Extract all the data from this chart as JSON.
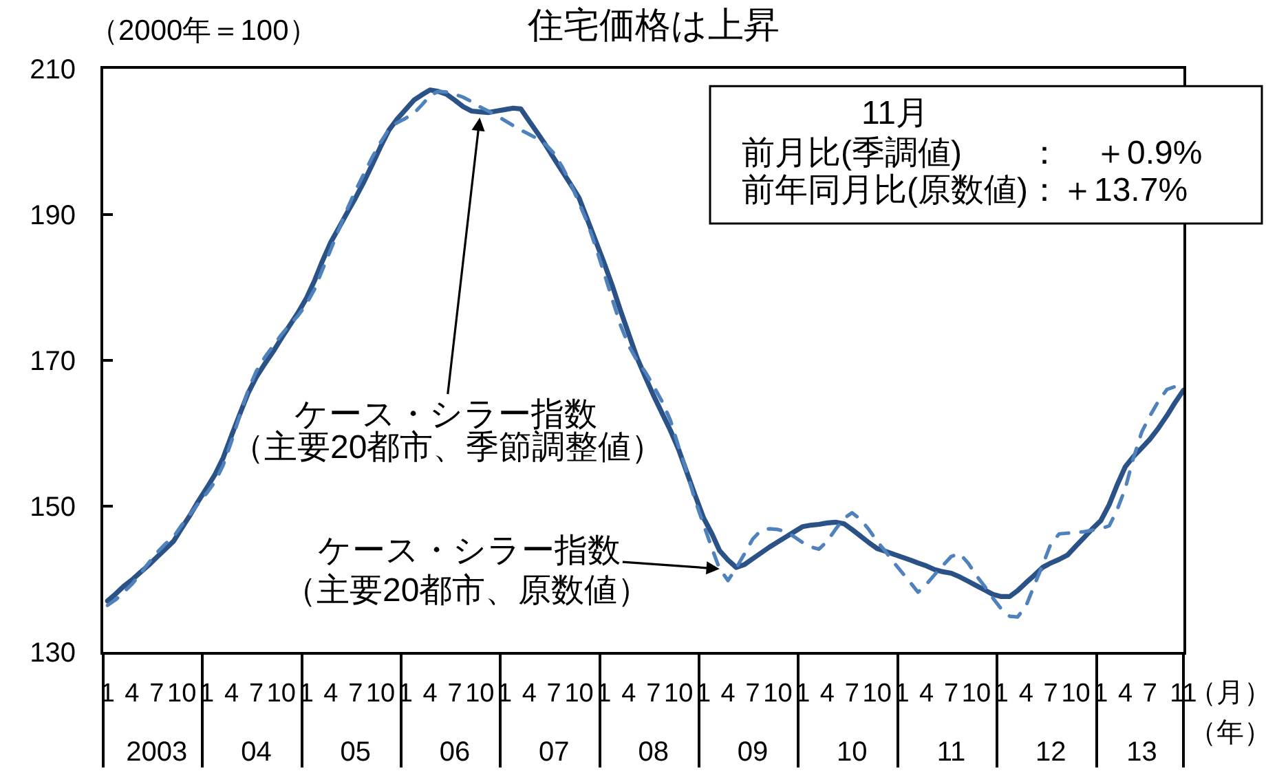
{
  "chart_data": {
    "type": "line",
    "title": "住宅価格は上昇",
    "ylabel": "（2000年＝100）",
    "xlabel": "（月）",
    "x2label": "（年）",
    "x": [
      "2003-01",
      "2003-02",
      "2003-03",
      "2003-04",
      "2003-05",
      "2003-06",
      "2003-07",
      "2003-08",
      "2003-09",
      "2003-10",
      "2003-11",
      "2003-12",
      "2004-01",
      "2004-02",
      "2004-03",
      "2004-04",
      "2004-05",
      "2004-06",
      "2004-07",
      "2004-08",
      "2004-09",
      "2004-10",
      "2004-11",
      "2004-12",
      "2005-01",
      "2005-02",
      "2005-03",
      "2005-04",
      "2005-05",
      "2005-06",
      "2005-07",
      "2005-08",
      "2005-09",
      "2005-10",
      "2005-11",
      "2005-12",
      "2006-01",
      "2006-02",
      "2006-03",
      "2006-04",
      "2006-05",
      "2006-06",
      "2006-07",
      "2006-08",
      "2006-09",
      "2006-10",
      "2006-11",
      "2006-12",
      "2007-01",
      "2007-02",
      "2007-03",
      "2007-04",
      "2007-05",
      "2007-06",
      "2007-07",
      "2007-08",
      "2007-09",
      "2007-10",
      "2007-11",
      "2007-12",
      "2008-01",
      "2008-02",
      "2008-03",
      "2008-04",
      "2008-05",
      "2008-06",
      "2008-07",
      "2008-08",
      "2008-09",
      "2008-10",
      "2008-11",
      "2008-12",
      "2009-01",
      "2009-02",
      "2009-03",
      "2009-04",
      "2009-05",
      "2009-06",
      "2009-07",
      "2009-08",
      "2009-09",
      "2009-10",
      "2009-11",
      "2009-12",
      "2010-01",
      "2010-02",
      "2010-03",
      "2010-04",
      "2010-05",
      "2010-06",
      "2010-07",
      "2010-08",
      "2010-09",
      "2010-10",
      "2010-11",
      "2010-12",
      "2011-01",
      "2011-02",
      "2011-03",
      "2011-04",
      "2011-05",
      "2011-06",
      "2011-07",
      "2011-08",
      "2011-09",
      "2011-10",
      "2011-11",
      "2011-12",
      "2012-01",
      "2012-02",
      "2012-03",
      "2012-04",
      "2012-05",
      "2012-06",
      "2012-07",
      "2012-08",
      "2012-09",
      "2012-10",
      "2012-11",
      "2012-12",
      "2013-01",
      "2013-02",
      "2013-03",
      "2013-04",
      "2013-05",
      "2013-06",
      "2013-07",
      "2013-08",
      "2013-09",
      "2013-10",
      "2013-11"
    ],
    "series": [
      {
        "color": "#2a5287",
        "line_style": "solid",
        "values": [
          137.0,
          138.0,
          139.0,
          139.9,
          140.9,
          141.9,
          143.0,
          144.1,
          145.2,
          147.0,
          148.8,
          150.7,
          152.5,
          154.4,
          156.6,
          159.7,
          162.6,
          165.5,
          167.7,
          169.5,
          171.2,
          173.0,
          174.8,
          176.5,
          178.5,
          181.0,
          183.6,
          186.2,
          188.2,
          190.3,
          192.3,
          194.5,
          196.9,
          199.3,
          201.6,
          203.1,
          204.4,
          205.7,
          206.4,
          207.1,
          206.9,
          206.5,
          205.7,
          204.8,
          204.2,
          204.1,
          204.0,
          204.2,
          204.4,
          204.6,
          204.5,
          202.8,
          201.2,
          199.5,
          197.7,
          195.9,
          194.1,
          192.3,
          189.3,
          186.4,
          183.4,
          180.2,
          176.9,
          173.6,
          170.4,
          167.7,
          165.2,
          162.8,
          160.4,
          157.8,
          154.6,
          151.5,
          148.4,
          146.2,
          143.9,
          142.6,
          141.6,
          142.0,
          142.8,
          143.6,
          144.4,
          145.1,
          145.8,
          146.5,
          147.2,
          147.4,
          147.5,
          147.7,
          147.8,
          147.6,
          146.8,
          145.9,
          145.0,
          144.2,
          143.8,
          143.4,
          143.0,
          142.6,
          142.2,
          141.8,
          141.3,
          141.0,
          140.8,
          140.3,
          139.7,
          139.1,
          138.5,
          137.9,
          137.6,
          137.6,
          138.4,
          139.5,
          140.5,
          141.6,
          142.2,
          142.7,
          143.3,
          144.5,
          145.7,
          146.9,
          148.0,
          150.2,
          152.8,
          155.4,
          156.8,
          158.0,
          159.2,
          160.7,
          162.4,
          164.2,
          165.9
        ]
      },
      {
        "color": "#4f81bd",
        "line_style": "dashed",
        "values": [
          136.4,
          137.2,
          138.2,
          139.3,
          140.7,
          142.2,
          143.6,
          144.8,
          145.8,
          147.4,
          148.9,
          150.4,
          151.8,
          153.4,
          155.6,
          158.9,
          162.4,
          165.9,
          168.5,
          170.4,
          172.0,
          173.5,
          174.9,
          176.1,
          177.7,
          179.8,
          182.4,
          185.2,
          188.0,
          190.8,
          193.3,
          195.6,
          197.9,
          199.9,
          201.7,
          202.6,
          203.2,
          203.9,
          205.0,
          206.3,
          206.9,
          206.8,
          206.5,
          206.1,
          205.5,
          204.8,
          204.2,
          203.6,
          202.9,
          202.2,
          201.6,
          201.0,
          200.4,
          199.6,
          198.4,
          196.5,
          194.2,
          191.6,
          188.9,
          185.6,
          182.0,
          178.3,
          174.9,
          172.0,
          170.0,
          168.4,
          166.5,
          164.4,
          161.8,
          158.2,
          154.6,
          150.8,
          147.5,
          144.2,
          141.4,
          139.8,
          141.5,
          143.5,
          145.5,
          146.7,
          146.9,
          146.8,
          146.5,
          145.8,
          145.0,
          144.4,
          144.1,
          145.2,
          146.8,
          148.3,
          149.1,
          148.2,
          146.8,
          145.2,
          143.8,
          142.3,
          140.9,
          139.5,
          138.2,
          139.3,
          140.6,
          141.9,
          143.1,
          143.5,
          142.2,
          140.5,
          139.0,
          137.4,
          135.9,
          134.9,
          134.8,
          136.3,
          139.1,
          141.9,
          144.8,
          146.2,
          146.3,
          146.4,
          146.5,
          146.7,
          146.9,
          147.3,
          149.4,
          152.4,
          156.6,
          160.2,
          162.4,
          164.4,
          166.0,
          166.4,
          166.1
        ]
      }
    ],
    "xlim": [
      "2002-12-16",
      "2013-11"
    ],
    "xticks": [
      {
        "value": "2002-12-16",
        "label": null
      },
      {
        "value": "2003-01",
        "label": "1"
      },
      {
        "value": "2003-04",
        "label": "4"
      },
      {
        "value": "2003-07",
        "label": "7"
      },
      {
        "value": "2003-10",
        "label": "10"
      },
      {
        "value": "2003-12-16",
        "label": null
      },
      {
        "value": "2004-01",
        "label": "1"
      },
      {
        "value": "2004-04",
        "label": "4"
      },
      {
        "value": "2004-07",
        "label": "7"
      },
      {
        "value": "2004-10",
        "label": "10"
      },
      {
        "value": "2004-12-16",
        "label": null
      },
      {
        "value": "2005-01",
        "label": "1"
      },
      {
        "value": "2005-04",
        "label": "4"
      },
      {
        "value": "2005-07",
        "label": "7"
      },
      {
        "value": "2005-10",
        "label": "10"
      },
      {
        "value": "2005-12-16",
        "label": null
      },
      {
        "value": "2006-01",
        "label": "1"
      },
      {
        "value": "2006-04",
        "label": "4"
      },
      {
        "value": "2006-07",
        "label": "7"
      },
      {
        "value": "2006-10",
        "label": "10"
      },
      {
        "value": "2006-12-16",
        "label": null
      },
      {
        "value": "2007-01",
        "label": "1"
      },
      {
        "value": "2007-04",
        "label": "4"
      },
      {
        "value": "2007-07",
        "label": "7"
      },
      {
        "value": "2007-10",
        "label": "10"
      },
      {
        "value": "2007-12-16",
        "label": null
      },
      {
        "value": "2008-01",
        "label": "1"
      },
      {
        "value": "2008-04",
        "label": "4"
      },
      {
        "value": "2008-07",
        "label": "7"
      },
      {
        "value": "2008-10",
        "label": "10"
      },
      {
        "value": "2008-12-16",
        "label": null
      },
      {
        "value": "2009-01",
        "label": "1"
      },
      {
        "value": "2009-04",
        "label": "4"
      },
      {
        "value": "2009-07",
        "label": "7"
      },
      {
        "value": "2009-10",
        "label": "10"
      },
      {
        "value": "2009-12-16",
        "label": null
      },
      {
        "value": "2010-01",
        "label": "1"
      },
      {
        "value": "2010-04",
        "label": "4"
      },
      {
        "value": "2010-07",
        "label": "7"
      },
      {
        "value": "2010-10",
        "label": "10"
      },
      {
        "value": "2010-12-16",
        "label": null
      },
      {
        "value": "2011-01",
        "label": "1"
      },
      {
        "value": "2011-04",
        "label": "4"
      },
      {
        "value": "2011-07",
        "label": "7"
      },
      {
        "value": "2011-10",
        "label": "10"
      },
      {
        "value": "2011-12-16",
        "label": null
      },
      {
        "value": "2012-01",
        "label": "1"
      },
      {
        "value": "2012-04",
        "label": "4"
      },
      {
        "value": "2012-07",
        "label": "7"
      },
      {
        "value": "2012-10",
        "label": "10"
      },
      {
        "value": "2012-12-16",
        "label": null
      },
      {
        "value": "2013-01",
        "label": "1"
      },
      {
        "value": "2013-04",
        "label": "4"
      },
      {
        "value": "2013-07",
        "label": "7"
      },
      {
        "value": "2013-11",
        "label": "11"
      },
      {
        "value": "2013-11",
        "label": null
      }
    ],
    "x2lim": [
      "2002-12-16",
      "2013-11"
    ],
    "x2ticks": [
      {
        "value": "2003-07",
        "label": "2003"
      },
      {
        "value": "2004-07",
        "label": "04"
      },
      {
        "value": "2005-07",
        "label": "05"
      },
      {
        "value": "2006-07",
        "label": "06"
      },
      {
        "value": "2007-07",
        "label": "07"
      },
      {
        "value": "2008-07",
        "label": "08"
      },
      {
        "value": "2009-07",
        "label": "09"
      },
      {
        "value": "2010-07",
        "label": "10"
      },
      {
        "value": "2011-07",
        "label": "11"
      },
      {
        "value": "2012-07",
        "label": "12"
      },
      {
        "value": "2013-06",
        "label": "13"
      }
    ],
    "ylim": [
      130,
      210
    ],
    "yticks": [
      130,
      150,
      170,
      190,
      210
    ],
    "grid": false,
    "annotations": [
      {
        "text": "ケース・シラー指数",
        "x": "2006-10",
        "y": 203.3
      },
      "（主要20都市、季節調整値）",
      {
        "text": "ケース・シラー指数",
        "x": "2009-03",
        "y": 141.4
      },
      "（主要20都市、原数値）",
      "11月",
      "前月比(季調値)　　：　＋0.9%",
      "前年同月比(原数値)：＋13.7%"
    ]
  }
}
